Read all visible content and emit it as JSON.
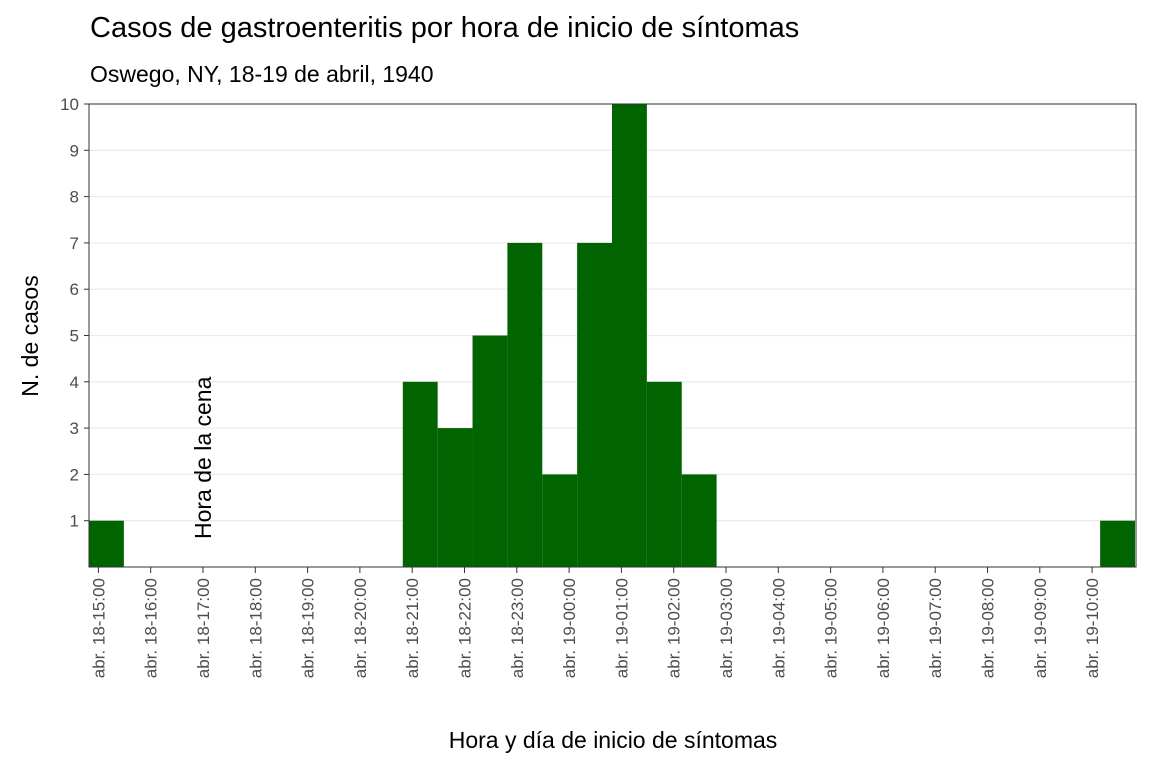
{
  "chart_data": {
    "type": "bar",
    "title": "Casos de gastroenteritis por hora de inicio de síntomas",
    "subtitle": "Oswego, NY, 18-19 de abril, 1940",
    "xlabel": "Hora y día de inicio de síntomas",
    "ylabel": "N. de casos",
    "ylim": [
      0,
      10
    ],
    "yticks": [
      1,
      2,
      3,
      4,
      5,
      6,
      7,
      8,
      9,
      10
    ],
    "xticks": [
      "abr. 18-15:00",
      "abr. 18-16:00",
      "abr. 18-17:00",
      "abr. 18-18:00",
      "abr. 18-19:00",
      "abr. 18-20:00",
      "abr. 18-21:00",
      "abr. 18-22:00",
      "abr. 18-23:00",
      "abr. 19-00:00",
      "abr. 19-01:00",
      "abr. 19-02:00",
      "abr. 19-03:00",
      "abr. 19-04:00",
      "abr. 19-05:00",
      "abr. 19-06:00",
      "abr. 19-07:00",
      "abr. 19-08:00",
      "abr. 19-09:00",
      "abr. 19-10:00"
    ],
    "bin_width_minutes": 40,
    "bins": [
      {
        "start": "abr. 18-15:00",
        "count": 1
      },
      {
        "start": "abr. 18-21:00",
        "count": 4
      },
      {
        "start": "abr. 18-21:40",
        "count": 3
      },
      {
        "start": "abr. 18-22:20",
        "count": 5
      },
      {
        "start": "abr. 18-23:00",
        "count": 7
      },
      {
        "start": "abr. 18-23:40",
        "count": 2
      },
      {
        "start": "abr. 19-00:20",
        "count": 7
      },
      {
        "start": "abr. 19-01:00",
        "count": 10
      },
      {
        "start": "abr. 19-01:40",
        "count": 4
      },
      {
        "start": "abr. 19-02:20",
        "count": 2
      },
      {
        "start": "abr. 19-10:20",
        "count": 1
      }
    ],
    "annotations": [
      {
        "text": "Hora de la cena",
        "x": "abr. 18-17:00",
        "rotation": "vertical"
      }
    ],
    "bar_color": "#006400",
    "grid": "horizontal"
  }
}
